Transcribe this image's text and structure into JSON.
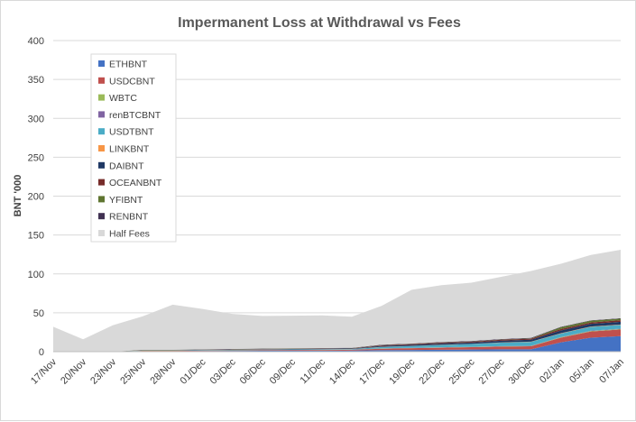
{
  "chart_data": {
    "type": "area",
    "stacked": true,
    "title": "Impermanent Loss at Withdrawal vs Fees",
    "ylabel": "BNT '000",
    "xlabel": "",
    "ylim": [
      0,
      400
    ],
    "yticks": [
      0,
      50,
      100,
      150,
      200,
      250,
      300,
      350,
      400
    ],
    "grid": "horizontal",
    "legend_position": "top-left",
    "categories": [
      "17/Nov",
      "20/Nov",
      "23/Nov",
      "25/Nov",
      "28/Nov",
      "01/Dec",
      "03/Dec",
      "06/Dec",
      "09/Dec",
      "11/Dec",
      "14/Dec",
      "17/Dec",
      "19/Dec",
      "22/Dec",
      "25/Dec",
      "27/Dec",
      "30/Dec",
      "02/Jan",
      "05/Jan",
      "07/Jan"
    ],
    "series": [
      {
        "name": "ETHBNT",
        "color": "#4472c4",
        "values": [
          0,
          0,
          0,
          0.6,
          0.6,
          0.8,
          1,
          1.1,
          1.2,
          1.3,
          1.4,
          2,
          2.2,
          2.5,
          2.8,
          3,
          3,
          12,
          18,
          20
        ]
      },
      {
        "name": "USDCBNT",
        "color": "#c0504d",
        "values": [
          0,
          0,
          0,
          0.4,
          0.4,
          0.5,
          0.6,
          0.7,
          0.8,
          0.9,
          1,
          1.8,
          2.3,
          2.6,
          3,
          3.5,
          4,
          6,
          8,
          8.5
        ]
      },
      {
        "name": "WBTC",
        "color": "#9bbb59",
        "values": [
          0,
          0,
          0,
          0.1,
          0.1,
          0.1,
          0.1,
          0.1,
          0.1,
          0.1,
          0.1,
          0.2,
          0.2,
          0.3,
          0.3,
          0.3,
          0.3,
          0.5,
          0.5,
          0.6
        ]
      },
      {
        "name": "renBTCBNT",
        "color": "#8064a2",
        "values": [
          0,
          0,
          0,
          0.1,
          0.1,
          0.1,
          0.1,
          0.1,
          0.1,
          0.1,
          0.1,
          0.2,
          0.2,
          0.2,
          0.2,
          0.3,
          0.3,
          0.4,
          0.4,
          0.4
        ]
      },
      {
        "name": "USDTBNT",
        "color": "#4bacc6",
        "values": [
          0,
          0,
          0,
          0.3,
          0.3,
          0.4,
          0.5,
          0.6,
          0.7,
          0.7,
          0.8,
          1.8,
          2.3,
          3,
          3.5,
          4.5,
          5,
          4.5,
          5,
          5
        ]
      },
      {
        "name": "LINKBNT",
        "color": "#f79646",
        "values": [
          0,
          0,
          0,
          0.1,
          0.1,
          0.1,
          0.1,
          0.1,
          0.1,
          0.1,
          0.1,
          0.2,
          0.2,
          0.2,
          0.2,
          0.3,
          0.3,
          0.4,
          0.4,
          0.4
        ]
      },
      {
        "name": "DAIBNT",
        "color": "#1f3864",
        "values": [
          0,
          0,
          0,
          0.3,
          0.3,
          0.4,
          0.4,
          0.5,
          0.5,
          0.6,
          0.6,
          1.2,
          1.5,
          1.8,
          1.8,
          2.2,
          2.5,
          3.5,
          3.5,
          3.5
        ]
      },
      {
        "name": "OCEANBNT",
        "color": "#772c2a",
        "values": [
          0,
          0,
          0,
          0.2,
          0.2,
          0.2,
          0.3,
          0.3,
          0.3,
          0.3,
          0.3,
          0.7,
          0.8,
          1,
          1,
          1.2,
          1.3,
          1.8,
          1.8,
          2
        ]
      },
      {
        "name": "YFIBNT",
        "color": "#5f7530",
        "values": [
          0,
          0,
          0,
          0.2,
          0.2,
          0.2,
          0.2,
          0.2,
          0.2,
          0.2,
          0.2,
          0.3,
          0.3,
          0.3,
          0.3,
          0.3,
          0.4,
          2.3,
          2.2,
          2
        ]
      },
      {
        "name": "RENBNT",
        "color": "#403152",
        "values": [
          0,
          0,
          0,
          0.2,
          0.2,
          0.2,
          0.2,
          0.3,
          0.3,
          0.3,
          0.4,
          0.6,
          0.5,
          0.6,
          0.6,
          0.6,
          0.7,
          0.6,
          0.5,
          0.6
        ]
      },
      {
        "name": "Half Fees",
        "color": "#d9d9d9",
        "values": [
          32,
          16,
          34,
          43,
          58,
          52,
          45,
          42,
          42,
          42,
          40,
          50,
          69,
          73,
          75,
          80,
          86,
          81,
          84,
          88
        ]
      }
    ]
  }
}
